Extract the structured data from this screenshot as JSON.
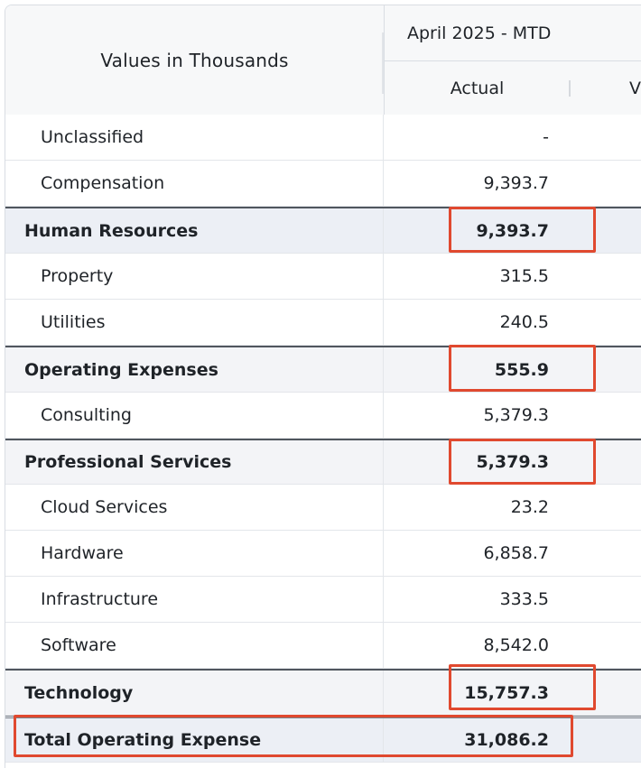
{
  "header": {
    "left_title": "Values in Thousands",
    "group_title": "April 2025 - MTD",
    "col_actual": "Actual",
    "col_next": "V"
  },
  "rows": [
    {
      "label": "Unclassified",
      "value": "-",
      "type": "sub"
    },
    {
      "label": "Compensation",
      "value": "9,393.7",
      "type": "sub"
    },
    {
      "label": "Human Resources",
      "value": "9,393.7",
      "type": "group"
    },
    {
      "label": "Property",
      "value": "315.5",
      "type": "sub"
    },
    {
      "label": "Utilities",
      "value": "240.5",
      "type": "sub"
    },
    {
      "label": "Operating Expenses",
      "value": "555.9",
      "type": "group"
    },
    {
      "label": "Consulting",
      "value": "5,379.3",
      "type": "sub"
    },
    {
      "label": "Professional Services",
      "value": "5,379.3",
      "type": "group"
    },
    {
      "label": "Cloud Services",
      "value": "23.2",
      "type": "sub"
    },
    {
      "label": "Hardware",
      "value": "6,858.7",
      "type": "sub"
    },
    {
      "label": "Infrastructure",
      "value": "333.5",
      "type": "sub"
    },
    {
      "label": "Software",
      "value": "8,542.0",
      "type": "sub"
    },
    {
      "label": "Technology",
      "value": "15,757.3",
      "type": "group"
    },
    {
      "label": "Total Operating Expense",
      "value": "31,086.2",
      "type": "total"
    }
  ],
  "colors": {
    "highlight": "#e0492f",
    "group_divider": "#50565e",
    "header_bg": "#f7f8f9"
  }
}
